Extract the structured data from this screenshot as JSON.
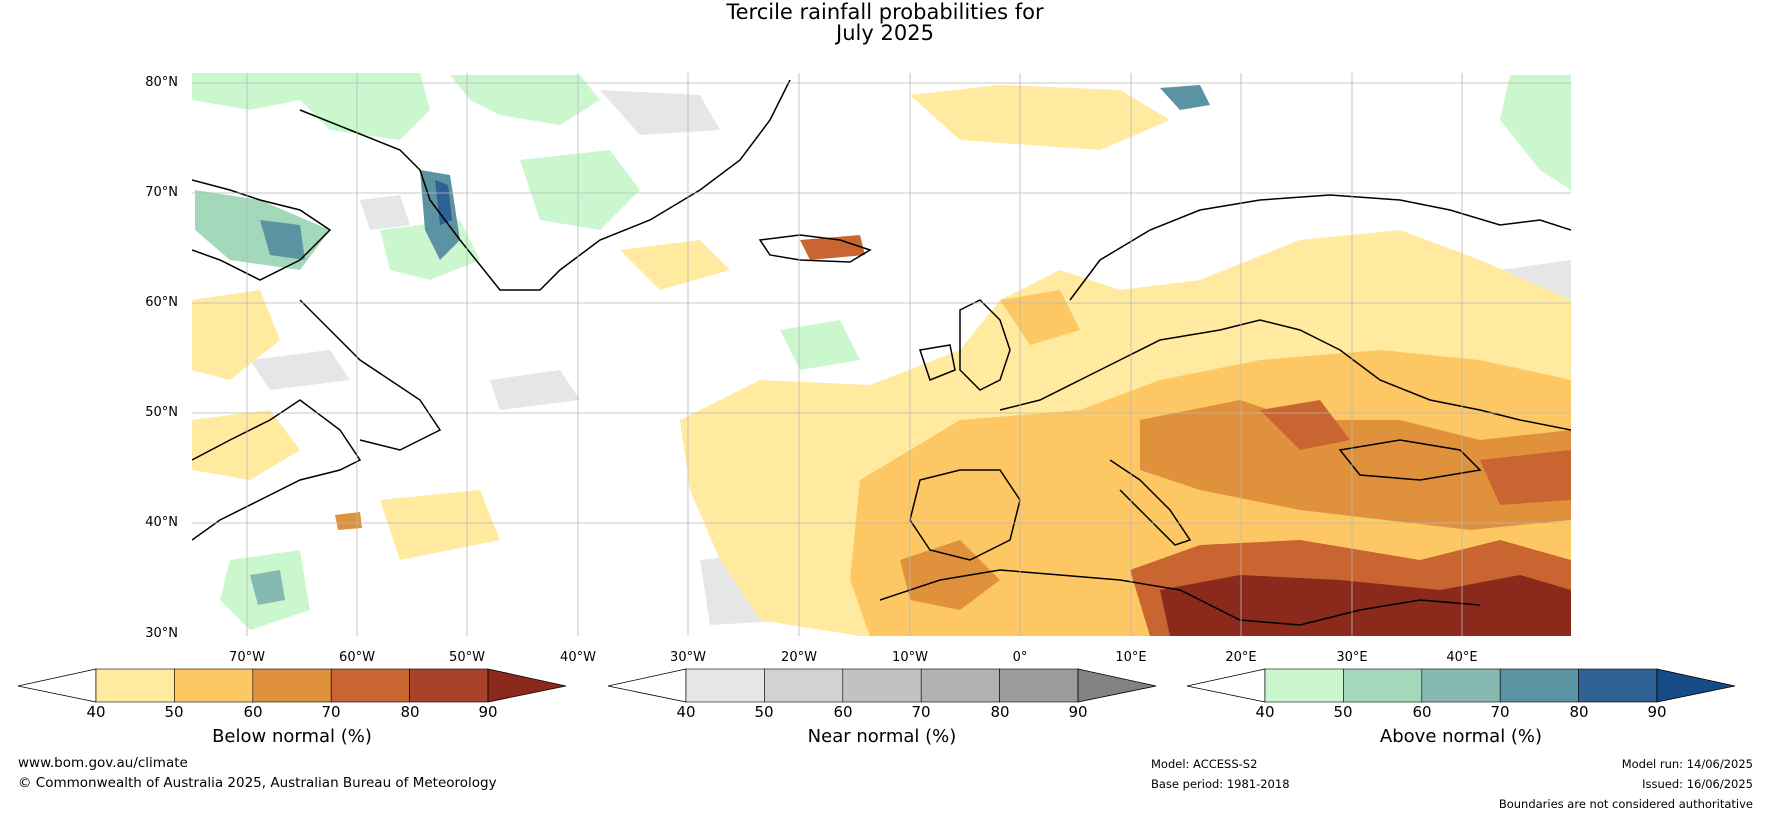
{
  "title": {
    "line1": "Tercile rainfall probabilities for",
    "line2": "July 2025"
  },
  "map": {
    "lat_ticks": [
      "80°N",
      "70°N",
      "60°N",
      "50°N",
      "40°N",
      "30°N"
    ],
    "lon_ticks": [
      "70°W",
      "60°W",
      "50°W",
      "40°W",
      "30°W",
      "20°W",
      "10°W",
      "0°",
      "10°E",
      "20°E",
      "30°E",
      "40°E"
    ],
    "extent": {
      "lon_min": -85,
      "lon_max": 40,
      "lat_min": 30,
      "lat_max": 81
    },
    "colors": {
      "below": [
        "#ffeaa0",
        "#fdc863",
        "#e0913c",
        "#c96530",
        "#a8432a",
        "#8b2a1c"
      ],
      "near": [
        "#e6e6e6",
        "#d2d2d2",
        "#c2c2c2",
        "#b2b2b2",
        "#9b9b9b",
        "#828282"
      ],
      "above": [
        "#cbf7cf",
        "#a4d8bb",
        "#86b9b2",
        "#5b93a3",
        "#2e6194",
        "#174b86"
      ]
    }
  },
  "colorbars": [
    {
      "id": "below",
      "label": "Below normal (%)",
      "ticks": [
        "40",
        "50",
        "60",
        "70",
        "80",
        "90"
      ]
    },
    {
      "id": "near",
      "label": "Near normal (%)",
      "ticks": [
        "40",
        "50",
        "60",
        "70",
        "80",
        "90"
      ]
    },
    {
      "id": "above",
      "label": "Above normal (%)",
      "ticks": [
        "40",
        "50",
        "60",
        "70",
        "80",
        "90"
      ]
    }
  ],
  "footer": {
    "website": "www.bom.gov.au/climate",
    "copyright": "© Commonwealth of Australia 2025, Australian Bureau of Meteorology",
    "model": "Model: ACCESS-S2",
    "base_period": "Base period: 1981-2018",
    "model_run": "Model run: 14/06/2025",
    "issued": "Issued: 16/06/2025",
    "disclaimer": "Boundaries are not considered authoritative"
  }
}
